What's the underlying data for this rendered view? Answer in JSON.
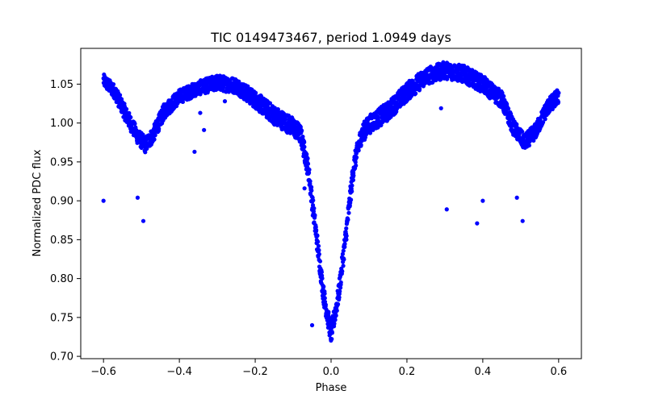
{
  "chart_data": {
    "type": "scatter",
    "title": "TIC 0149473467, period 1.0949 days",
    "xlabel": "Phase",
    "ylabel": "Normalized PDC flux",
    "xlim": [
      -0.66,
      0.66
    ],
    "ylim": [
      0.697,
      1.096
    ],
    "xticks": [
      -0.6,
      -0.4,
      -0.2,
      0.0,
      0.2,
      0.4,
      0.6
    ],
    "xtick_labels": [
      "−0.6",
      "−0.4",
      "−0.2",
      "0.0",
      "0.2",
      "0.4",
      "0.6"
    ],
    "yticks": [
      0.7,
      0.75,
      0.8,
      0.85,
      0.9,
      0.95,
      1.0,
      1.05
    ],
    "ytick_labels": [
      "0.70",
      "0.75",
      "0.80",
      "0.85",
      "0.90",
      "0.95",
      "1.00",
      "1.05"
    ],
    "grid": false,
    "marker_color": "#0000ff",
    "curve_band": {
      "description_points": [
        [
          -0.6,
          1.055,
          0.008
        ],
        [
          -0.57,
          1.04,
          0.009
        ],
        [
          -0.54,
          1.01,
          0.01
        ],
        [
          -0.51,
          0.983,
          0.01
        ],
        [
          -0.49,
          0.972,
          0.01
        ],
        [
          -0.47,
          0.984,
          0.01
        ],
        [
          -0.44,
          1.015,
          0.01
        ],
        [
          -0.4,
          1.034,
          0.009
        ],
        [
          -0.35,
          1.045,
          0.009
        ],
        [
          -0.3,
          1.052,
          0.01
        ],
        [
          -0.25,
          1.048,
          0.01
        ],
        [
          -0.2,
          1.03,
          0.011
        ],
        [
          -0.15,
          1.01,
          0.012
        ],
        [
          -0.1,
          0.995,
          0.012
        ],
        [
          -0.08,
          0.985,
          0.012
        ],
        [
          -0.06,
          0.94,
          0.012
        ],
        [
          -0.04,
          0.86,
          0.012
        ],
        [
          -0.02,
          0.78,
          0.012
        ],
        [
          0.0,
          0.728,
          0.012
        ],
        [
          0.02,
          0.78,
          0.012
        ],
        [
          0.04,
          0.86,
          0.012
        ],
        [
          0.06,
          0.945,
          0.012
        ],
        [
          0.08,
          0.985,
          0.012
        ],
        [
          0.1,
          0.998,
          0.012
        ],
        [
          0.15,
          1.015,
          0.012
        ],
        [
          0.2,
          1.04,
          0.012
        ],
        [
          0.25,
          1.06,
          0.011
        ],
        [
          0.3,
          1.068,
          0.011
        ],
        [
          0.35,
          1.063,
          0.011
        ],
        [
          0.4,
          1.05,
          0.011
        ],
        [
          0.45,
          1.03,
          0.011
        ],
        [
          0.48,
          0.995,
          0.01
        ],
        [
          0.51,
          0.975,
          0.01
        ],
        [
          0.54,
          0.99,
          0.01
        ],
        [
          0.57,
          1.02,
          0.01
        ],
        [
          0.6,
          1.035,
          0.01
        ]
      ]
    },
    "outliers": [
      [
        -0.6,
        0.9
      ],
      [
        -0.51,
        0.904
      ],
      [
        -0.495,
        0.874
      ],
      [
        -0.36,
        0.963
      ],
      [
        -0.345,
        1.013
      ],
      [
        -0.335,
        0.991
      ],
      [
        -0.28,
        1.028
      ],
      [
        -0.07,
        0.916
      ],
      [
        -0.05,
        0.74
      ],
      [
        0.29,
        1.019
      ],
      [
        0.305,
        0.889
      ],
      [
        0.385,
        0.871
      ],
      [
        0.4,
        0.9
      ],
      [
        0.49,
        0.904
      ],
      [
        0.505,
        0.874
      ]
    ]
  }
}
